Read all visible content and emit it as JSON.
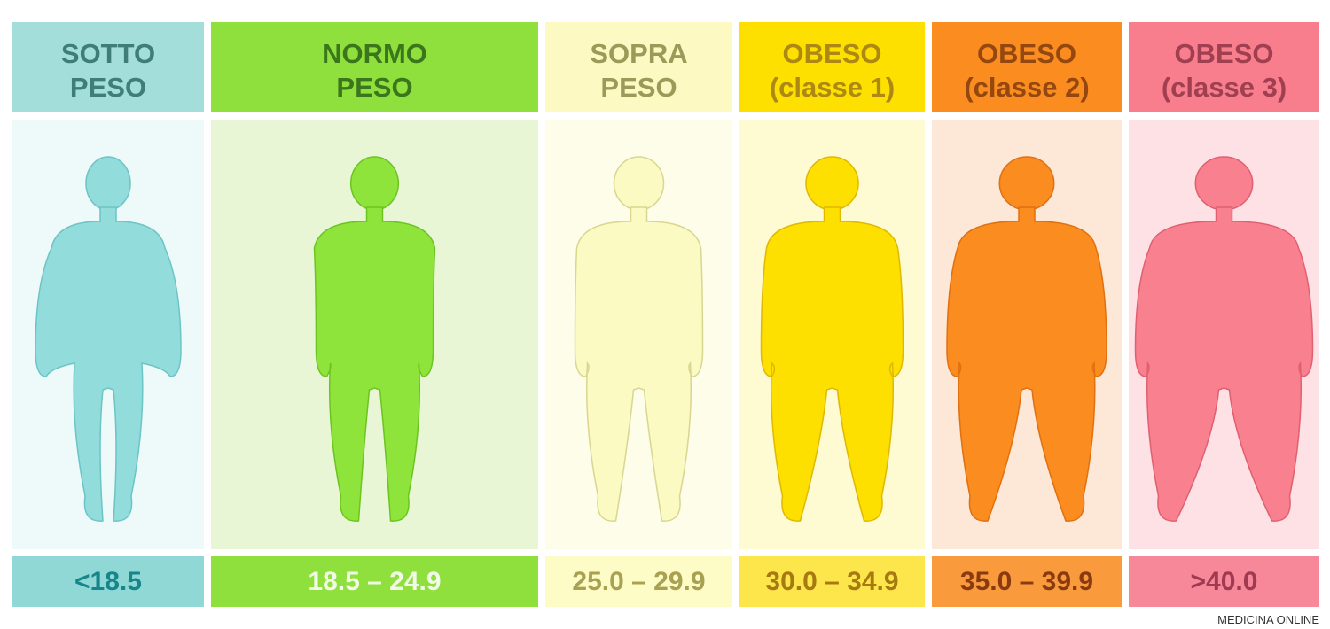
{
  "columns": [
    {
      "title": [
        "SOTTO",
        "PESO"
      ],
      "range": "<18.5"
    },
    {
      "title": [
        "NORMO",
        "PESO"
      ],
      "range": "18.5 – 24.9"
    },
    {
      "title": [
        "SOPRA",
        "PESO"
      ],
      "range": "25.0 – 29.9"
    },
    {
      "title": [
        "OBESO",
        "(classe 1)"
      ],
      "range": "30.0 – 34.9"
    },
    {
      "title": [
        "OBESO",
        "(classe 2)"
      ],
      "range": "35.0 – 39.9"
    },
    {
      "title": [
        "OBESO",
        "(classe 3)"
      ],
      "range": ">40.0"
    }
  ],
  "footer": "MEDICINA ONLINE"
}
